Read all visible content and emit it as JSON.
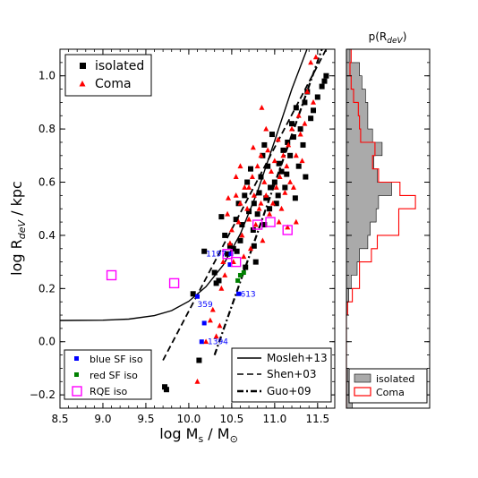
{
  "chart_data": [
    {
      "type": "scatter",
      "xlabel": "log M",
      "xlabel_sub": "s",
      "xlabel_tail": " / M",
      "xlabel_unit_symbol": "⊙",
      "ylabel": "log R",
      "ylabel_sub": "deV",
      "ylabel_tail": " / kpc",
      "xlim": [
        8.5,
        11.7
      ],
      "ylim": [
        -0.25,
        1.1
      ],
      "xticks": [
        "8.5",
        "9.0",
        "9.5",
        "10.0",
        "10.5",
        "11.0",
        "11.5"
      ],
      "xtick_values": [
        8.5,
        9.0,
        9.5,
        10.0,
        10.5,
        11.0,
        11.5
      ],
      "yticks": [
        "−0.2",
        "0.0",
        "0.2",
        "0.4",
        "0.6",
        "0.8",
        "1.0"
      ],
      "ytick_values": [
        -0.2,
        0.0,
        0.2,
        0.4,
        0.6,
        0.8,
        1.0
      ],
      "legend_top": {
        "location": "top-left",
        "entries": [
          "isolated",
          "Coma"
        ]
      },
      "legend_bottom_left": {
        "location": "bottom-left",
        "entries": [
          "blue SF iso",
          "red SF iso",
          "RQE iso"
        ]
      },
      "legend_bottom_right": {
        "location": "bottom-right",
        "entries": [
          "Mosleh+13",
          "Shen+03",
          "Guo+09"
        ]
      },
      "colors": {
        "isolated": "#000000",
        "coma": "#ff0000",
        "blue_sf": "#0000ff",
        "red_sf": "#008000",
        "rqe": "#ff00ff"
      },
      "series": [
        {
          "name": "isolated",
          "marker": "square",
          "points": [
            [
              9.72,
              -0.17
            ],
            [
              9.74,
              -0.18
            ],
            [
              10.05,
              0.18
            ],
            [
              10.12,
              -0.07
            ],
            [
              10.18,
              0.34
            ],
            [
              10.3,
              0.26
            ],
            [
              10.35,
              0.23
            ],
            [
              10.38,
              0.47
            ],
            [
              10.42,
              0.4
            ],
            [
              10.45,
              0.33
            ],
            [
              10.48,
              0.36
            ],
            [
              10.52,
              0.35
            ],
            [
              10.55,
              0.46
            ],
            [
              10.58,
              0.52
            ],
            [
              10.6,
              0.38
            ],
            [
              10.62,
              0.44
            ],
            [
              10.65,
              0.55
            ],
            [
              10.68,
              0.6
            ],
            [
              10.7,
              0.49
            ],
            [
              10.72,
              0.65
            ],
            [
              10.75,
              0.42
            ],
            [
              10.78,
              0.3
            ],
            [
              10.8,
              0.48
            ],
            [
              10.82,
              0.56
            ],
            [
              10.84,
              0.62
            ],
            [
              10.86,
              0.7
            ],
            [
              10.88,
              0.74
            ],
            [
              10.9,
              0.54
            ],
            [
              10.92,
              0.66
            ],
            [
              10.95,
              0.58
            ],
            [
              10.97,
              0.78
            ],
            [
              11.0,
              0.6
            ],
            [
              11.02,
              0.52
            ],
            [
              11.05,
              0.67
            ],
            [
              11.08,
              0.64
            ],
            [
              11.1,
              0.72
            ],
            [
              11.12,
              0.58
            ],
            [
              11.15,
              0.75
            ],
            [
              11.18,
              0.7
            ],
            [
              11.2,
              0.82
            ],
            [
              11.22,
              0.77
            ],
            [
              11.25,
              0.88
            ],
            [
              11.28,
              0.66
            ],
            [
              11.3,
              0.8
            ],
            [
              11.33,
              0.74
            ],
            [
              11.35,
              0.9
            ],
            [
              11.38,
              0.94
            ],
            [
              11.42,
              0.84
            ],
            [
              11.45,
              0.87
            ],
            [
              11.55,
              0.96
            ],
            [
              11.58,
              0.98
            ],
            [
              11.6,
              1.0
            ],
            [
              11.5,
              0.92
            ],
            [
              11.36,
              0.62
            ],
            [
              11.24,
              0.54
            ],
            [
              11.14,
              0.63
            ],
            [
              11.04,
              0.55
            ],
            [
              10.94,
              0.5
            ],
            [
              10.88,
              0.44
            ],
            [
              10.76,
              0.36
            ],
            [
              10.66,
              0.28
            ],
            [
              10.56,
              0.34
            ],
            [
              10.32,
              0.22
            ],
            [
              10.76,
              0.52
            ]
          ]
        },
        {
          "name": "Coma",
          "marker": "triangle",
          "points": [
            [
              10.1,
              -0.15
            ],
            [
              10.2,
              0.0
            ],
            [
              10.25,
              0.08
            ],
            [
              10.28,
              0.12
            ],
            [
              10.32,
              0.02
            ],
            [
              10.38,
              0.2
            ],
            [
              10.42,
              0.25
            ],
            [
              10.45,
              0.48
            ],
            [
              10.48,
              0.37
            ],
            [
              10.5,
              0.42
            ],
            [
              10.52,
              0.3
            ],
            [
              10.55,
              0.55
            ],
            [
              10.58,
              0.45
            ],
            [
              10.6,
              0.52
            ],
            [
              10.62,
              0.4
            ],
            [
              10.65,
              0.58
            ],
            [
              10.68,
              0.5
            ],
            [
              10.7,
              0.46
            ],
            [
              10.72,
              0.35
            ],
            [
              10.74,
              0.62
            ],
            [
              10.76,
              0.55
            ],
            [
              10.78,
              0.44
            ],
            [
              10.8,
              0.66
            ],
            [
              10.82,
              0.5
            ],
            [
              10.84,
              0.7
            ],
            [
              10.86,
              0.38
            ],
            [
              10.88,
              0.6
            ],
            [
              10.9,
              0.55
            ],
            [
              10.92,
              0.72
            ],
            [
              10.94,
              0.48
            ],
            [
              10.96,
              0.64
            ],
            [
              10.98,
              0.52
            ],
            [
              11.0,
              0.68
            ],
            [
              11.02,
              0.58
            ],
            [
              11.04,
              0.76
            ],
            [
              11.06,
              0.62
            ],
            [
              11.08,
              0.5
            ],
            [
              11.1,
              0.7
            ],
            [
              11.12,
              0.56
            ],
            [
              11.14,
              0.66
            ],
            [
              11.16,
              0.74
            ],
            [
              11.18,
              0.6
            ],
            [
              11.2,
              0.8
            ],
            [
              11.22,
              0.58
            ],
            [
              11.25,
              0.7
            ],
            [
              11.28,
              0.85
            ],
            [
              11.3,
              0.78
            ],
            [
              11.32,
              0.68
            ],
            [
              11.35,
              0.82
            ],
            [
              11.38,
              0.94
            ],
            [
              11.42,
              1.05
            ],
            [
              11.45,
              0.9
            ],
            [
              11.48,
              1.07
            ],
            [
              10.9,
              0.8
            ],
            [
              10.85,
              0.88
            ],
            [
              10.75,
              0.73
            ],
            [
              10.6,
              0.66
            ],
            [
              10.46,
              0.54
            ],
            [
              10.55,
              0.62
            ],
            [
              11.25,
              0.45
            ],
            [
              11.15,
              0.43
            ],
            [
              10.64,
              0.32
            ],
            [
              10.7,
              0.58
            ],
            [
              10.36,
              0.06
            ],
            [
              10.4,
              0.3
            ],
            [
              10.84,
              0.52
            ],
            [
              11.05,
              0.45
            ]
          ]
        },
        {
          "name": "blue SF iso",
          "marker": "square",
          "points": [
            [
              10.1,
              0.17
            ],
            [
              10.18,
              0.07
            ],
            [
              10.58,
              0.18
            ],
            [
              10.15,
              0.0
            ],
            [
              10.49,
              0.33
            ],
            [
              10.48,
              0.29
            ]
          ]
        },
        {
          "name": "red SF iso",
          "marker": "square",
          "points": [
            [
              10.57,
              0.23
            ],
            [
              10.64,
              0.26
            ],
            [
              10.6,
              0.25
            ]
          ]
        },
        {
          "name": "RQE iso",
          "marker": "open-square",
          "points": [
            [
              9.1,
              0.25
            ],
            [
              9.83,
              0.22
            ],
            [
              10.45,
              0.33
            ],
            [
              10.55,
              0.3
            ],
            [
              10.8,
              0.44
            ],
            [
              10.95,
              0.45
            ],
            [
              11.15,
              0.42
            ]
          ]
        }
      ],
      "annotations": [
        {
          "text": "1197",
          "x": 10.2,
          "y": 0.33,
          "color": "#0000ff"
        },
        {
          "text": "359",
          "x": 10.1,
          "y": 0.14,
          "color": "#0000ff"
        },
        {
          "text": "613",
          "x": 10.6,
          "y": 0.18,
          "color": "#0000ff"
        },
        {
          "text": "1394",
          "x": 10.22,
          "y": 0.0,
          "color": "#0000ff"
        }
      ],
      "lines": [
        {
          "name": "Mosleh+13",
          "style": "solid",
          "points": [
            [
              8.5,
              0.08
            ],
            [
              9.0,
              0.081
            ],
            [
              9.3,
              0.085
            ],
            [
              9.6,
              0.098
            ],
            [
              9.8,
              0.117
            ],
            [
              10.0,
              0.152
            ],
            [
              10.2,
              0.207
            ],
            [
              10.4,
              0.288
            ],
            [
              10.6,
              0.405
            ],
            [
              10.8,
              0.565
            ],
            [
              11.0,
              0.755
            ],
            [
              11.2,
              0.95
            ],
            [
              11.4,
              1.12
            ]
          ]
        },
        {
          "name": "Shen+03",
          "style": "dashed",
          "points": [
            [
              9.7,
              -0.07
            ],
            [
              11.6,
              1.1
            ]
          ]
        },
        {
          "name": "Guo+09",
          "style": "dashdot",
          "points": [
            [
              10.3,
              -0.05
            ],
            [
              11.55,
              1.1
            ]
          ]
        }
      ]
    },
    {
      "type": "histogram",
      "title": "p(R",
      "title_sub": "deV",
      "title_tail": ")",
      "ylim": [
        -0.25,
        1.1
      ],
      "orientation": "horizontal",
      "legend": {
        "location": "bottom",
        "entries": [
          "isolated",
          "Coma"
        ]
      },
      "bin_edges": [
        -0.25,
        -0.2,
        -0.15,
        -0.1,
        -0.05,
        0.0,
        0.05,
        0.1,
        0.15,
        0.2,
        0.25,
        0.3,
        0.35,
        0.4,
        0.45,
        0.5,
        0.55,
        0.6,
        0.65,
        0.7,
        0.75,
        0.8,
        0.85,
        0.9,
        0.95,
        1.0,
        1.05,
        1.1
      ],
      "series": [
        {
          "name": "isolated",
          "style": "filled-grey",
          "values": [
            0.5,
            0.2,
            0.1,
            0.0,
            0.0,
            0.0,
            0.0,
            0.1,
            0.2,
            0.4,
            0.9,
            1.1,
            1.8,
            2.0,
            2.5,
            2.7,
            3.8,
            2.6,
            2.3,
            3.0,
            2.2,
            1.8,
            1.8,
            1.6,
            1.3,
            1.1,
            0.3
          ]
        },
        {
          "name": "Coma",
          "style": "red-outline",
          "values": [
            0.0,
            0.0,
            0.0,
            0.0,
            0.0,
            0.0,
            0.0,
            0.1,
            0.5,
            1.1,
            1.1,
            2.1,
            2.6,
            4.4,
            4.4,
            5.8,
            4.5,
            2.7,
            2.2,
            2.4,
            1.2,
            1.1,
            1.0,
            0.6,
            0.4,
            0.3,
            0.4
          ]
        }
      ]
    }
  ]
}
